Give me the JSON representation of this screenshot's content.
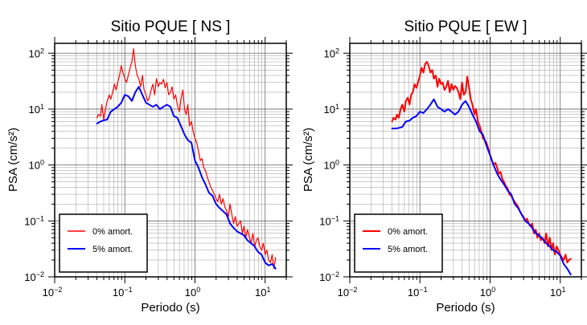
{
  "chart_data": [
    {
      "type": "line",
      "title": "Sitio PQUE [ NS ]",
      "xlabel": "Periodo (s)",
      "ylabel": "PSA (cm/s²)",
      "xscale": "log",
      "yscale": "log",
      "xlim": [
        0.01,
        20
      ],
      "ylim": [
        0.01,
        150
      ],
      "grid": true,
      "legend_position": "bottom-left",
      "x_ticks": [
        {
          "base": "10",
          "exp": "−2"
        },
        {
          "base": "10",
          "exp": "−1"
        },
        {
          "base": "10",
          "exp": "0"
        },
        {
          "base": "10",
          "exp": "1"
        }
      ],
      "y_ticks": [
        {
          "base": "10",
          "exp": "−2"
        },
        {
          "base": "10",
          "exp": "−1"
        },
        {
          "base": "10",
          "exp": "0"
        },
        {
          "base": "10",
          "exp": "1"
        },
        {
          "base": "10",
          "exp": "2"
        }
      ],
      "series": [
        {
          "name": "0% amort.",
          "color": "#ff0000",
          "width": 1.2,
          "x": [
            0.04,
            0.042,
            0.045,
            0.047,
            0.05,
            0.053,
            0.056,
            0.06,
            0.063,
            0.067,
            0.071,
            0.075,
            0.079,
            0.084,
            0.089,
            0.094,
            0.1,
            0.106,
            0.112,
            0.119,
            0.126,
            0.133,
            0.141,
            0.15,
            0.158,
            0.168,
            0.178,
            0.188,
            0.2,
            0.211,
            0.224,
            0.237,
            0.251,
            0.266,
            0.282,
            0.299,
            0.316,
            0.335,
            0.355,
            0.376,
            0.398,
            0.422,
            0.447,
            0.473,
            0.5,
            0.53,
            0.56,
            0.6,
            0.63,
            0.67,
            0.71,
            0.75,
            0.79,
            0.84,
            0.89,
            0.94,
            1.0,
            1.06,
            1.12,
            1.19,
            1.26,
            1.33,
            1.41,
            1.5,
            1.58,
            1.68,
            1.78,
            1.88,
            2.0,
            2.11,
            2.24,
            2.37,
            2.51,
            2.66,
            2.82,
            2.99,
            3.16,
            3.35,
            3.55,
            3.76,
            3.98,
            4.22,
            4.47,
            4.73,
            5.0,
            5.3,
            5.6,
            6.0,
            6.3,
            6.7,
            7.1,
            7.5,
            7.9,
            8.4,
            8.9,
            9.4,
            10,
            10.6,
            11.2,
            11.9,
            12.6,
            13.3,
            14.1
          ],
          "y": [
            7,
            8,
            7.5,
            12,
            6.5,
            10,
            14,
            18,
            15,
            20,
            28,
            22,
            30,
            40,
            60,
            45,
            35,
            30,
            40,
            55,
            70,
            120,
            60,
            40,
            35,
            25,
            40,
            22,
            18,
            14,
            16,
            22,
            28,
            18,
            35,
            25,
            30,
            28,
            34,
            24,
            30,
            18,
            20,
            25,
            15,
            18,
            12,
            9,
            15,
            22,
            10,
            8,
            12,
            5,
            6,
            4,
            3,
            2.5,
            1.8,
            1.2,
            1.3,
            0.9,
            0.8,
            0.6,
            0.5,
            0.4,
            0.35,
            0.3,
            0.25,
            0.22,
            0.3,
            0.2,
            0.25,
            0.18,
            0.15,
            0.12,
            0.2,
            0.13,
            0.09,
            0.12,
            0.08,
            0.09,
            0.1,
            0.06,
            0.08,
            0.05,
            0.07,
            0.05,
            0.04,
            0.06,
            0.035,
            0.045,
            0.05,
            0.035,
            0.03,
            0.04,
            0.025,
            0.03,
            0.02,
            0.018,
            0.025,
            0.014,
            0.022
          ]
        },
        {
          "name": "5% amort.",
          "color": "#0000ff",
          "width": 2,
          "x": [
            0.04,
            0.045,
            0.05,
            0.056,
            0.063,
            0.071,
            0.079,
            0.089,
            0.1,
            0.112,
            0.126,
            0.141,
            0.158,
            0.178,
            0.2,
            0.224,
            0.251,
            0.282,
            0.316,
            0.355,
            0.398,
            0.447,
            0.5,
            0.56,
            0.63,
            0.71,
            0.79,
            0.89,
            1.0,
            1.12,
            1.26,
            1.41,
            1.58,
            1.78,
            2.0,
            2.24,
            2.51,
            2.82,
            3.16,
            3.55,
            3.98,
            4.47,
            5.0,
            5.6,
            6.3,
            7.1,
            7.9,
            8.9,
            10,
            11.2,
            12.6,
            14.1
          ],
          "y": [
            5.5,
            6,
            6.3,
            6.5,
            9,
            10,
            11,
            13,
            18,
            17,
            14,
            20,
            25,
            18,
            13,
            12,
            11,
            12,
            10,
            11,
            12,
            11,
            7.5,
            7,
            5,
            3.5,
            2.8,
            2.5,
            1.2,
            0.9,
            0.6,
            0.45,
            0.32,
            0.28,
            0.2,
            0.17,
            0.15,
            0.13,
            0.09,
            0.075,
            0.065,
            0.06,
            0.055,
            0.045,
            0.04,
            0.035,
            0.028,
            0.025,
            0.018,
            0.016,
            0.017,
            0.014
          ]
        }
      ]
    },
    {
      "type": "line",
      "title": "Sitio PQUE [ EW ]",
      "xlabel": "Periodo (s)",
      "ylabel": "PSA (cm/s²)",
      "xscale": "log",
      "yscale": "log",
      "xlim": [
        0.01,
        20
      ],
      "ylim": [
        0.01,
        150
      ],
      "grid": true,
      "legend_position": "bottom-left",
      "x_ticks": [
        {
          "base": "10",
          "exp": "−2"
        },
        {
          "base": "10",
          "exp": "−1"
        },
        {
          "base": "10",
          "exp": "0"
        },
        {
          "base": "10",
          "exp": "1"
        }
      ],
      "y_ticks": [
        {
          "base": "10",
          "exp": "−2"
        },
        {
          "base": "10",
          "exp": "−1"
        },
        {
          "base": "10",
          "exp": "0"
        },
        {
          "base": "10",
          "exp": "1"
        },
        {
          "base": "10",
          "exp": "2"
        }
      ],
      "series": [
        {
          "name": "0% amort.",
          "color": "#ff0000",
          "width": 2,
          "x": [
            0.04,
            0.042,
            0.045,
            0.047,
            0.05,
            0.053,
            0.056,
            0.06,
            0.063,
            0.067,
            0.071,
            0.075,
            0.079,
            0.084,
            0.089,
            0.094,
            0.1,
            0.106,
            0.112,
            0.119,
            0.126,
            0.133,
            0.141,
            0.15,
            0.158,
            0.168,
            0.178,
            0.188,
            0.2,
            0.211,
            0.224,
            0.237,
            0.251,
            0.266,
            0.282,
            0.299,
            0.316,
            0.335,
            0.355,
            0.376,
            0.398,
            0.422,
            0.447,
            0.473,
            0.5,
            0.53,
            0.56,
            0.6,
            0.63,
            0.67,
            0.71,
            0.75,
            0.79,
            0.84,
            0.89,
            0.94,
            1.0,
            1.06,
            1.12,
            1.19,
            1.26,
            1.33,
            1.41,
            1.5,
            1.58,
            1.68,
            1.78,
            1.88,
            2.0,
            2.11,
            2.24,
            2.37,
            2.51,
            2.66,
            2.82,
            2.99,
            3.16,
            3.35,
            3.55,
            3.76,
            3.98,
            4.22,
            4.47,
            4.73,
            5.0,
            5.3,
            5.6,
            6.0,
            6.3,
            6.7,
            7.1,
            7.5,
            7.9,
            8.4,
            8.9,
            9.4,
            10,
            10.6,
            11.2,
            11.9,
            12.6,
            13.3,
            14.1
          ],
          "y": [
            6,
            7,
            6.5,
            8,
            7,
            10,
            12,
            9,
            14,
            16,
            12,
            18,
            20,
            28,
            24,
            30,
            40,
            55,
            45,
            65,
            70,
            60,
            45,
            50,
            35,
            40,
            25,
            35,
            28,
            30,
            22,
            25,
            32,
            20,
            28,
            22,
            26,
            24,
            20,
            15,
            30,
            18,
            20,
            38,
            25,
            15,
            12,
            8,
            10,
            6,
            5,
            4,
            3,
            2.8,
            2.5,
            2,
            1.5,
            1.2,
            1.0,
            1.1,
            0.9,
            0.7,
            0.75,
            0.55,
            0.5,
            0.42,
            0.38,
            0.3,
            0.28,
            0.25,
            0.22,
            0.2,
            0.18,
            0.15,
            0.13,
            0.12,
            0.1,
            0.11,
            0.09,
            0.08,
            0.09,
            0.06,
            0.07,
            0.05,
            0.06,
            0.045,
            0.05,
            0.04,
            0.06,
            0.035,
            0.05,
            0.03,
            0.04,
            0.025,
            0.035,
            0.03,
            0.025,
            0.022,
            0.02,
            0.025,
            0.018,
            0.02,
            0.021
          ]
        },
        {
          "name": "5% amort.",
          "color": "#0000ff",
          "width": 2,
          "x": [
            0.04,
            0.045,
            0.05,
            0.056,
            0.063,
            0.071,
            0.079,
            0.089,
            0.1,
            0.112,
            0.126,
            0.141,
            0.158,
            0.178,
            0.2,
            0.224,
            0.251,
            0.282,
            0.316,
            0.355,
            0.398,
            0.447,
            0.5,
            0.56,
            0.63,
            0.71,
            0.79,
            0.89,
            1.0,
            1.12,
            1.26,
            1.41,
            1.58,
            1.78,
            2.0,
            2.24,
            2.51,
            2.82,
            3.16,
            3.55,
            3.98,
            4.47,
            5.0,
            5.6,
            6.3,
            7.1,
            7.9,
            8.9,
            10,
            11.2,
            12.6,
            14.1
          ],
          "y": [
            4.5,
            4.5,
            4.6,
            4.8,
            6,
            6.2,
            7,
            7.5,
            9,
            8.5,
            10,
            12,
            15,
            11,
            10,
            9,
            10,
            9,
            8,
            9,
            12,
            14,
            11,
            8,
            6,
            4,
            3.5,
            2.2,
            1.5,
            1.0,
            0.7,
            0.55,
            0.45,
            0.35,
            0.3,
            0.2,
            0.17,
            0.13,
            0.1,
            0.09,
            0.075,
            0.06,
            0.055,
            0.048,
            0.04,
            0.035,
            0.03,
            0.028,
            0.024,
            0.017,
            0.014,
            0.011
          ]
        }
      ]
    }
  ]
}
